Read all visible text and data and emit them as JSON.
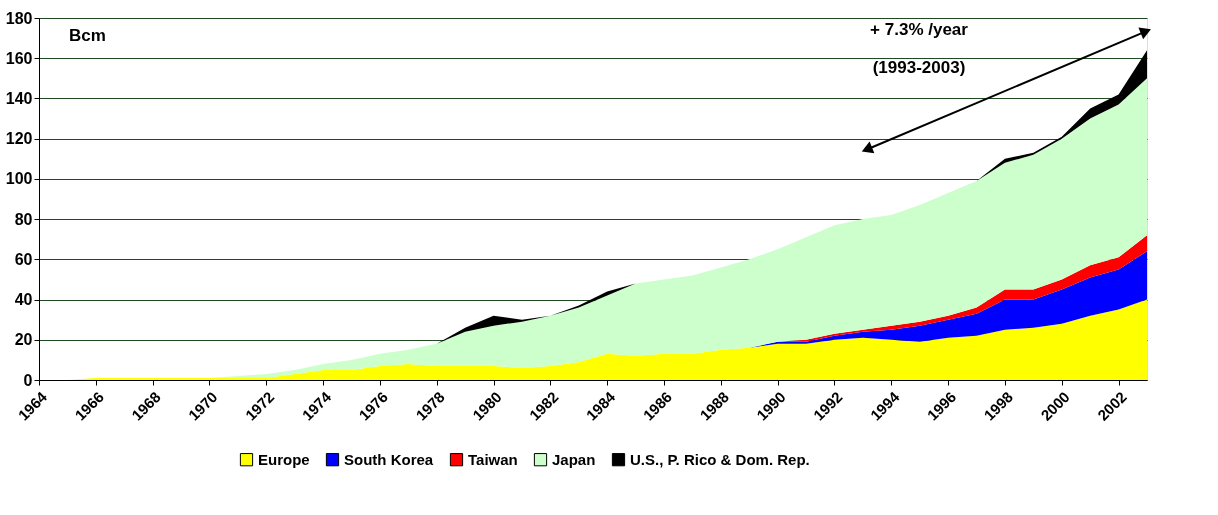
{
  "chart_data": {
    "type": "area",
    "stacked": true,
    "ylabel": "Bcm",
    "x": [
      1964,
      1965,
      1966,
      1967,
      1968,
      1969,
      1970,
      1971,
      1972,
      1973,
      1974,
      1975,
      1976,
      1977,
      1978,
      1979,
      1980,
      1981,
      1982,
      1983,
      1984,
      1985,
      1986,
      1987,
      1988,
      1989,
      1990,
      1991,
      1992,
      1993,
      1994,
      1995,
      1996,
      1997,
      1998,
      1999,
      2000,
      2001,
      2002,
      2003
    ],
    "series": [
      {
        "name": "Europe",
        "color": "#ffff00",
        "values": [
          0,
          0,
          1,
          1,
          1,
          1,
          1,
          1,
          1,
          3,
          5,
          5,
          7,
          8,
          7,
          7,
          7,
          6,
          7,
          9,
          13,
          12,
          13,
          13,
          15,
          16,
          18,
          18,
          20,
          21,
          20,
          19,
          21,
          22,
          25,
          26,
          28,
          32,
          35,
          40
        ]
      },
      {
        "name": "South Korea",
        "color": "#0000ff",
        "values": [
          0,
          0,
          0,
          0,
          0,
          0,
          0,
          0,
          0,
          0,
          0,
          0,
          0,
          0,
          0,
          0,
          0,
          0,
          0,
          0,
          0,
          0,
          0,
          0,
          0,
          0,
          1,
          1,
          2,
          3,
          5,
          8,
          9,
          11,
          15,
          14,
          17,
          19,
          20,
          24
        ]
      },
      {
        "name": "Taiwan",
        "color": "#ff0000",
        "values": [
          0,
          0,
          0,
          0,
          0,
          0,
          0,
          0,
          0,
          0,
          0,
          0,
          0,
          0,
          0,
          0,
          0,
          0,
          0,
          0,
          0,
          0,
          0,
          0,
          0,
          0,
          0,
          1,
          1,
          1,
          2,
          2,
          2,
          3,
          5,
          5,
          5,
          6,
          6,
          8
        ]
      },
      {
        "name": "Japan",
        "color": "#ccffcc",
        "values": [
          0,
          0,
          0,
          0,
          0,
          0,
          0,
          1,
          2,
          2,
          3,
          5,
          6,
          7,
          11,
          17,
          20,
          23,
          25,
          27,
          29,
          36,
          37,
          39,
          41,
          44,
          46,
          51,
          54,
          55,
          55,
          58,
          61,
          63,
          63,
          67,
          70,
          73,
          76,
          78
        ]
      },
      {
        "name": "U.S., P. Rico & Dom. Rep.",
        "color": "#000000",
        "values": [
          0,
          0,
          0,
          0,
          0,
          0,
          0,
          0,
          0,
          0,
          0,
          0,
          0,
          0,
          0,
          2,
          5,
          1,
          0,
          1,
          2,
          0,
          0,
          0,
          0,
          0,
          0,
          0,
          0,
          0,
          0,
          0,
          0,
          0,
          2,
          1,
          1,
          5,
          5,
          14
        ]
      }
    ],
    "xlim": [
      1964,
      2003
    ],
    "xticks": [
      1964,
      1966,
      1968,
      1970,
      1972,
      1974,
      1976,
      1978,
      1980,
      1982,
      1984,
      1986,
      1988,
      1990,
      1992,
      1994,
      1996,
      1998,
      2000,
      2002
    ],
    "ylim": [
      0,
      180
    ],
    "yticks": [
      0,
      20,
      40,
      60,
      80,
      100,
      120,
      140,
      160,
      180
    ],
    "grid": "y",
    "legend": "bottom",
    "annotations": [
      "+ 7.3% /year\n(1993-2003)"
    ]
  }
}
